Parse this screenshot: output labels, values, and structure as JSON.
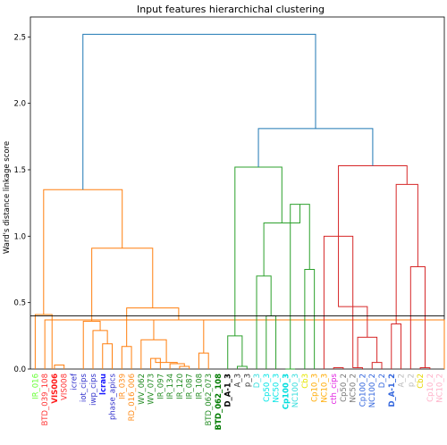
{
  "chart_data": {
    "type": "dendrogram",
    "title": "Input features hierarchichal clustering",
    "ylabel": "Ward's distance linkage score",
    "xlabel": "",
    "ylim": [
      0,
      2.65
    ],
    "yticks": [
      0.0,
      0.5,
      1.0,
      1.5,
      2.0,
      2.5
    ],
    "cut_line": 0.4,
    "colors": {
      "orange": "#ff7f0e",
      "green": "#2ca02c",
      "red": "#d62728",
      "blue": "#1f77b4",
      "cut": "#000000"
    },
    "leaves": [
      {
        "name": "IR_016",
        "color": "#66ff33",
        "bold": false
      },
      {
        "name": "BTD_039_108",
        "color": "#ff3333",
        "bold": false
      },
      {
        "name": "VIS006",
        "color": "#ff1a1a",
        "bold": true
      },
      {
        "name": "VIS008",
        "color": "#ff3333",
        "bold": false
      },
      {
        "name": "icref",
        "color": "#3333cc",
        "bold": false
      },
      {
        "name": "iot_cips",
        "color": "#3333cc",
        "bold": false
      },
      {
        "name": "iwp_cips",
        "color": "#3333cc",
        "bold": false
      },
      {
        "name": "lcrau",
        "color": "#1a1aff",
        "bold": true
      },
      {
        "name": "phase_apics",
        "color": "#3333cc",
        "bold": false
      },
      {
        "name": "IR_039",
        "color": "#ff8c1a",
        "bold": false
      },
      {
        "name": "RD_016_006",
        "color": "#ff8c1a",
        "bold": false
      },
      {
        "name": "WV_062",
        "color": "#228b22",
        "bold": false
      },
      {
        "name": "WV_073",
        "color": "#228b22",
        "bold": false
      },
      {
        "name": "IR_097",
        "color": "#228b22",
        "bold": false
      },
      {
        "name": "IR_134",
        "color": "#228b22",
        "bold": false
      },
      {
        "name": "IR_120",
        "color": "#228b22",
        "bold": false
      },
      {
        "name": "IR_087",
        "color": "#228b22",
        "bold": false
      },
      {
        "name": "IR_108",
        "color": "#228b22",
        "bold": false
      },
      {
        "name": "BTD_062_073",
        "color": "#228b22",
        "bold": false
      },
      {
        "name": "BTD_062_108",
        "color": "#007a00",
        "bold": true
      },
      {
        "name": "D_A-1_3",
        "color": "#000000",
        "bold": true
      },
      {
        "name": "A_3",
        "color": "#333333",
        "bold": false
      },
      {
        "name": "p_3",
        "color": "#333333",
        "bold": false
      },
      {
        "name": "D_3",
        "color": "#33dddd",
        "bold": false
      },
      {
        "name": "Cp50_3",
        "color": "#00e5e5",
        "bold": false
      },
      {
        "name": "NC50_3",
        "color": "#00e5e5",
        "bold": false
      },
      {
        "name": "Cp100_3",
        "color": "#00dddd",
        "bold": true
      },
      {
        "name": "NC100_3",
        "color": "#33dddd",
        "bold": false
      },
      {
        "name": "Cb3",
        "color": "#e6e600",
        "bold": false
      },
      {
        "name": "Cp10_3",
        "color": "#ffaa00",
        "bold": false
      },
      {
        "name": "NC10_3",
        "color": "#ffaa00",
        "bold": false
      },
      {
        "name": "cth_cips",
        "color": "#e020e0",
        "bold": false
      },
      {
        "name": "Cp50_2",
        "color": "#777777",
        "bold": false
      },
      {
        "name": "NC50_2",
        "color": "#777777",
        "bold": false
      },
      {
        "name": "Cp100_2",
        "color": "#3366dd",
        "bold": false
      },
      {
        "name": "NC100_2",
        "color": "#3366dd",
        "bold": false
      },
      {
        "name": "D_2",
        "color": "#3366dd",
        "bold": false
      },
      {
        "name": "D_A-1_2",
        "color": "#3366dd",
        "bold": true
      },
      {
        "name": "A_2",
        "color": "#bbbbbb",
        "bold": false
      },
      {
        "name": "p_2",
        "color": "#bbbbbb",
        "bold": false
      },
      {
        "name": "Cb2",
        "color": "#e6d600",
        "bold": false
      },
      {
        "name": "Cp10_2",
        "color": "#ffb0c8",
        "bold": false
      },
      {
        "name": "NC10_2",
        "color": "#ffb0c8",
        "bold": false
      }
    ],
    "links": [
      {
        "l": 2,
        "r": 3,
        "h": 0.03,
        "c": "orange"
      },
      {
        "l": 1,
        "r": 42.5,
        "h": 0.37,
        "c": "orange"
      },
      {
        "l": 0,
        "r": 1.75,
        "h": 0.41,
        "c": "orange"
      },
      {
        "l": 7,
        "r": 8,
        "h": 0.19,
        "c": "orange"
      },
      {
        "l": 6,
        "r": 7.5,
        "h": 0.29,
        "c": "orange"
      },
      {
        "l": 5,
        "r": 6.75,
        "h": 0.36,
        "c": "orange"
      },
      {
        "l": 9,
        "r": 10,
        "h": 0.17,
        "c": "orange"
      },
      {
        "l": 12,
        "r": 13,
        "h": 0.08,
        "c": "orange"
      },
      {
        "l": 15,
        "r": 16,
        "h": 0.02,
        "c": "orange"
      },
      {
        "l": 14,
        "r": 15.5,
        "h": 0.04,
        "c": "orange"
      },
      {
        "l": 12.5,
        "r": 14.75,
        "h": 0.05,
        "c": "orange"
      },
      {
        "l": 11,
        "r": 13.625,
        "h": 0.22,
        "c": "orange"
      },
      {
        "l": 17,
        "r": 18,
        "h": 0.12,
        "c": "orange"
      },
      {
        "l": 12.3125,
        "r": 17.5,
        "h": 0.37,
        "c": "orange"
      },
      {
        "l": 9.5,
        "r": 14.90625,
        "h": 0.46,
        "c": "orange"
      },
      {
        "l": 5.875,
        "r": 12.203125,
        "h": 0.91,
        "c": "orange"
      },
      {
        "l": 0.875,
        "r": 9.0390625,
        "h": 1.35,
        "c": "orange"
      }
    ],
    "links_right": [
      {
        "l": 21,
        "r": 22,
        "h": 0.02,
        "c": "green"
      },
      {
        "l": 20,
        "r": 21.5,
        "h": 0.25,
        "c": "green"
      },
      {
        "l": 24,
        "r": 25,
        "h": 0.4,
        "c": "green"
      },
      {
        "l": 23,
        "r": 24.5,
        "h": 0.7,
        "c": "green"
      },
      {
        "l": 26,
        "r": 27,
        "h": 0.0,
        "c": "green"
      },
      {
        "l": 28,
        "r": 29,
        "h": 0.75,
        "c": "green"
      },
      {
        "l": 26.5,
        "r": 28.5,
        "h": 1.24,
        "c": "green"
      },
      {
        "l": 23.75,
        "r": 27.5,
        "h": 1.1,
        "c": "green"
      },
      {
        "l": 20.75,
        "r": 25.625,
        "h": 1.52,
        "c": "green"
      },
      {
        "l": 31,
        "r": 32,
        "h": 0.01,
        "c": "red"
      },
      {
        "l": 33,
        "r": 34,
        "h": 0.01,
        "c": "red"
      },
      {
        "l": 35,
        "r": 36,
        "h": 0.05,
        "c": "red"
      },
      {
        "l": 33.5,
        "r": 35.5,
        "h": 0.24,
        "c": "red"
      },
      {
        "l": 31.5,
        "r": 34.5,
        "h": 0.47,
        "c": "red"
      },
      {
        "l": 30,
        "r": 33.0,
        "h": 1.0,
        "c": "red"
      },
      {
        "l": 37,
        "r": 38,
        "h": 0.34,
        "c": "red"
      },
      {
        "l": 40,
        "r": 41,
        "h": 0.01,
        "c": "red"
      },
      {
        "l": 39,
        "r": 40.5,
        "h": 0.77,
        "c": "red"
      },
      {
        "l": 37.5,
        "r": 39.75,
        "h": 1.39,
        "c": "red"
      },
      {
        "l": 31.5,
        "r": 38.625,
        "h": 1.53,
        "c": "red"
      },
      {
        "l": 23.1875,
        "r": 35.0625,
        "h": 1.81,
        "c": "blue"
      },
      {
        "l": 4.95703125,
        "r": 29.125,
        "h": 2.52,
        "c": "blue"
      }
    ]
  }
}
